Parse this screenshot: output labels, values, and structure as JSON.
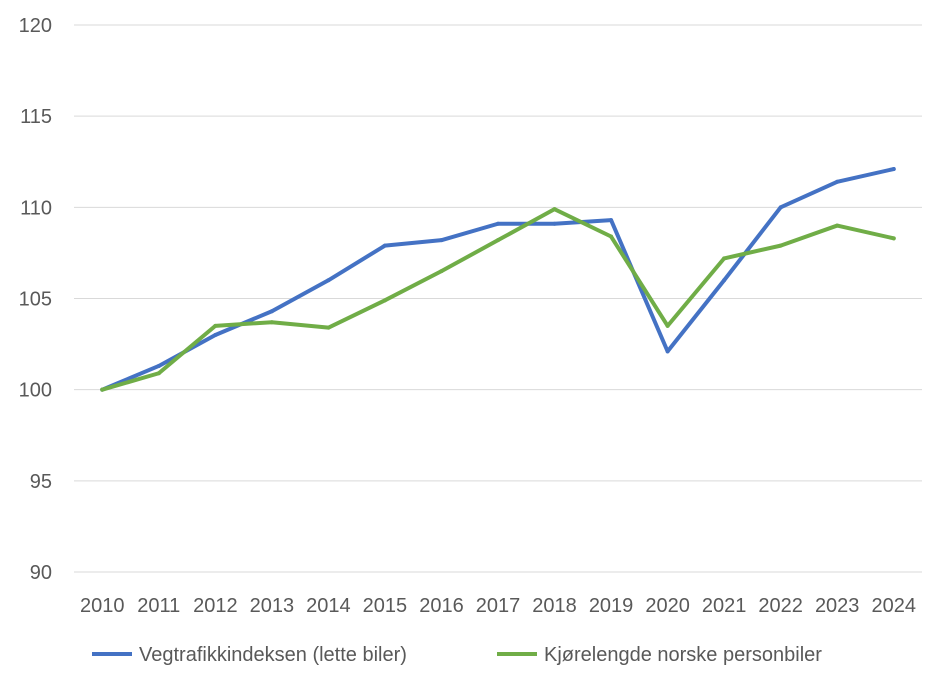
{
  "chart_data": {
    "type": "line",
    "title": "",
    "xlabel": "",
    "ylabel": "",
    "categories": [
      "2010",
      "2011",
      "2012",
      "2013",
      "2014",
      "2015",
      "2016",
      "2017",
      "2018",
      "2019",
      "2020",
      "2021",
      "2022",
      "2023",
      "2024"
    ],
    "ylim": [
      90,
      120
    ],
    "yticks": [
      90,
      95,
      100,
      105,
      110,
      115,
      120
    ],
    "grid": "horizontal",
    "legend_position": "bottom",
    "series": [
      {
        "name": "Vegtrafikkindeksen (lette biler)",
        "color": "#4472C4",
        "values": [
          100,
          101.3,
          103.0,
          104.3,
          106.0,
          107.9,
          108.2,
          109.1,
          109.1,
          109.3,
          102.1,
          106.0,
          110.0,
          111.4,
          112.1
        ]
      },
      {
        "name": "Kjørelengde norske personbiler",
        "color": "#70AD47",
        "values": [
          100,
          100.9,
          103.5,
          103.7,
          103.4,
          104.9,
          106.5,
          108.2,
          109.9,
          108.4,
          103.5,
          107.2,
          107.9,
          109.0,
          108.3
        ]
      }
    ]
  }
}
